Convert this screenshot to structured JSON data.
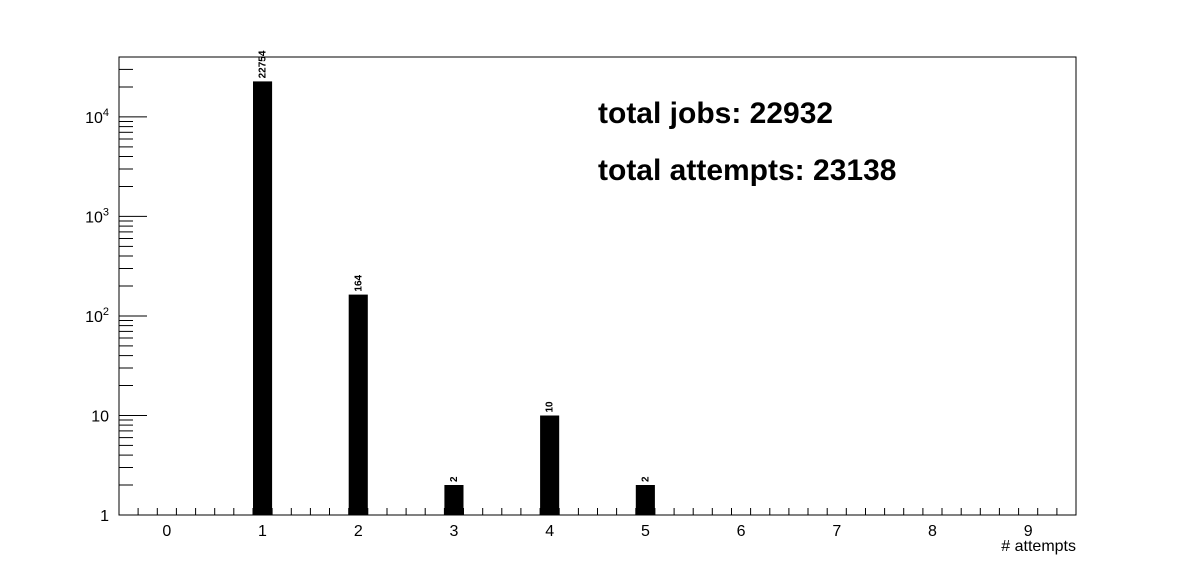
{
  "chart_data": {
    "type": "bar",
    "title": "",
    "xlabel": "# attempts",
    "ylabel": "",
    "y_scale": "log",
    "ylim": [
      1,
      40000
    ],
    "xlim": [
      -0.5,
      9.5
    ],
    "grid": false,
    "legend": "none",
    "bar_color": "#000000",
    "x": [
      0,
      1,
      2,
      3,
      4,
      5,
      6,
      7,
      8,
      9
    ],
    "values": [
      0,
      22754,
      164,
      2,
      10,
      2,
      0,
      0,
      0,
      0
    ],
    "x_tick_labels": [
      "0",
      "1",
      "2",
      "3",
      "4",
      "5",
      "6",
      "7",
      "8",
      "9"
    ],
    "y_tick_labels": [
      {
        "value": 1,
        "base": "1",
        "exp": ""
      },
      {
        "value": 10,
        "base": "10",
        "exp": ""
      },
      {
        "value": 100,
        "base": "10",
        "exp": "2"
      },
      {
        "value": 1000,
        "base": "10",
        "exp": "3"
      },
      {
        "value": 10000,
        "base": "10",
        "exp": "4"
      }
    ],
    "annotations": [
      "total jobs: 22932",
      "total attempts: 23138"
    ]
  }
}
